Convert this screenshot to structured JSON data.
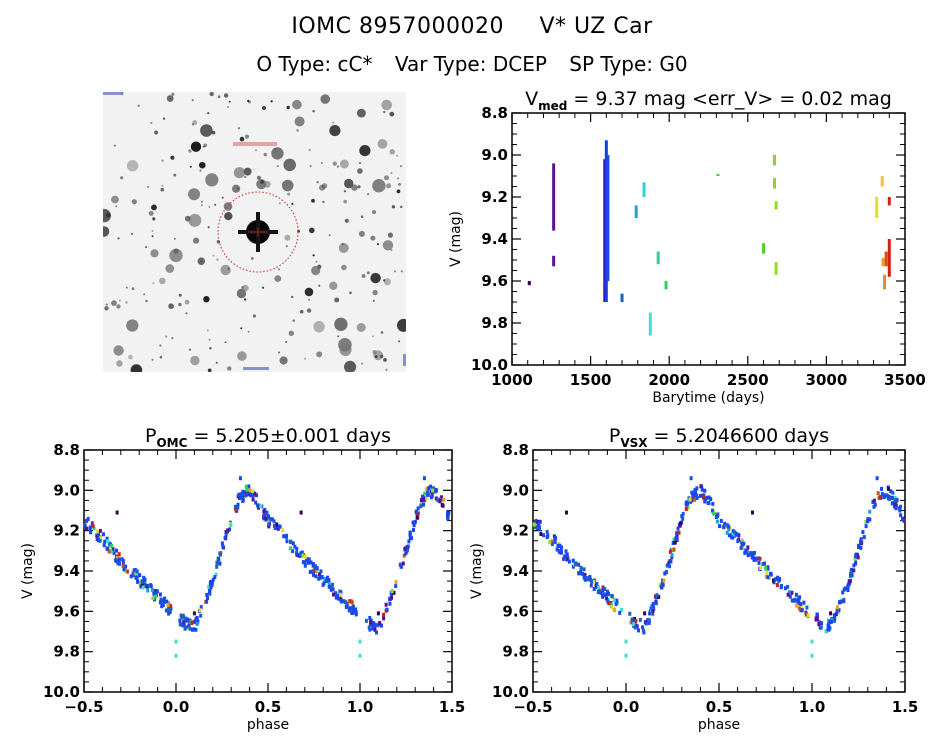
{
  "header": {
    "catalog_id": "IOMC 8957000020",
    "star_name": "V* UZ Car",
    "object_type": "O Type: cC*",
    "var_type": "Var Type: DCEP",
    "sp_type": "SP Type: G0"
  },
  "sky_image": {
    "description": "DSS-style grayscale star field centered on target with red circle marker"
  },
  "chart_data": [
    {
      "id": "lightcurve",
      "type": "scatter",
      "title_main": "V",
      "title_sub": "med",
      "title_rest": " = 9.37 mag <err_V> = 0.02 mag",
      "xlabel": "Barytime (days)",
      "ylabel": "V (mag)",
      "xlim": [
        1000,
        3500
      ],
      "ylim": [
        10.0,
        8.8
      ],
      "y_inverted": true,
      "xticks": [
        1000,
        1500,
        2000,
        2500,
        3000,
        3500
      ],
      "xtick_labels": [
        "1000",
        "1500",
        "2000",
        "2500",
        "3000",
        "3500"
      ],
      "yticks": [
        8.8,
        9.0,
        9.2,
        9.4,
        9.6,
        9.8,
        10.0
      ],
      "ytick_labels": [
        "8.8",
        "9.0",
        "9.2",
        "9.4",
        "9.6",
        "9.8",
        "10.0"
      ],
      "grid": false,
      "segments": [
        {
          "t": 1110,
          "v_min": 9.6,
          "v_max": 9.62,
          "color": "#3a0050"
        },
        {
          "t": 1265,
          "v_min": 9.04,
          "v_max": 9.36,
          "color": "#5a1090"
        },
        {
          "t": 1265,
          "v_min": 9.48,
          "v_max": 9.53,
          "color": "#5a1090"
        },
        {
          "t": 1590,
          "v_min": 9.02,
          "v_max": 9.7,
          "color": "#4a10c0"
        },
        {
          "t": 1600,
          "v_min": 8.93,
          "v_max": 9.7,
          "color": "#1040e0"
        },
        {
          "t": 1610,
          "v_min": 9.0,
          "v_max": 9.6,
          "color": "#1848f0"
        },
        {
          "t": 1700,
          "v_min": 9.66,
          "v_max": 9.7,
          "color": "#2060c0"
        },
        {
          "t": 1790,
          "v_min": 9.24,
          "v_max": 9.3,
          "color": "#20a0e0"
        },
        {
          "t": 1840,
          "v_min": 9.13,
          "v_max": 9.2,
          "color": "#30d0e0"
        },
        {
          "t": 1880,
          "v_min": 9.75,
          "v_max": 9.86,
          "color": "#40e0d0"
        },
        {
          "t": 1930,
          "v_min": 9.46,
          "v_max": 9.52,
          "color": "#30d090"
        },
        {
          "t": 1980,
          "v_min": 9.6,
          "v_max": 9.64,
          "color": "#30d060"
        },
        {
          "t": 2310,
          "v_min": 9.09,
          "v_max": 9.1,
          "color": "#40d040"
        },
        {
          "t": 2600,
          "v_min": 9.42,
          "v_max": 9.47,
          "color": "#50d030"
        },
        {
          "t": 2670,
          "v_min": 9.0,
          "v_max": 9.05,
          "color": "#90d030"
        },
        {
          "t": 2670,
          "v_min": 9.11,
          "v_max": 9.16,
          "color": "#90d030"
        },
        {
          "t": 2680,
          "v_min": 9.22,
          "v_max": 9.26,
          "color": "#90e020"
        },
        {
          "t": 2680,
          "v_min": 9.51,
          "v_max": 9.57,
          "color": "#90e020"
        },
        {
          "t": 3320,
          "v_min": 9.2,
          "v_max": 9.3,
          "color": "#e0e030"
        },
        {
          "t": 3355,
          "v_min": 9.1,
          "v_max": 9.15,
          "color": "#f0c040"
        },
        {
          "t": 3360,
          "v_min": 9.49,
          "v_max": 9.53,
          "color": "#f0a020"
        },
        {
          "t": 3370,
          "v_min": 9.57,
          "v_max": 9.64,
          "color": "#e09020"
        },
        {
          "t": 3380,
          "v_min": 9.46,
          "v_max": 9.53,
          "color": "#d05010"
        },
        {
          "t": 3400,
          "v_min": 9.4,
          "v_max": 9.58,
          "color": "#d02010"
        },
        {
          "t": 3400,
          "v_min": 9.2,
          "v_max": 9.24,
          "color": "#d02010"
        }
      ]
    },
    {
      "id": "phase_omc",
      "type": "scatter",
      "title_main": "P",
      "title_sub": "OMC",
      "title_rest": " = 5.205±0.001 days",
      "xlabel": "phase",
      "ylabel": "V (mag)",
      "xlim": [
        -0.5,
        1.5
      ],
      "ylim": [
        10.0,
        8.8
      ],
      "y_inverted": true,
      "xticks": [
        -0.5,
        0.0,
        0.5,
        1.0,
        1.5
      ],
      "xtick_labels": [
        "−0.5",
        "0.0",
        "0.5",
        "1.0",
        "1.5"
      ],
      "yticks": [
        8.8,
        9.0,
        9.2,
        9.4,
        9.6,
        9.8,
        10.0
      ],
      "ytick_labels": [
        "8.8",
        "9.0",
        "9.2",
        "9.4",
        "9.6",
        "9.8",
        "10.0"
      ],
      "grid": false,
      "light_curve_template": {
        "phase": [
          0.0,
          0.05,
          0.1,
          0.13,
          0.2,
          0.25,
          0.3,
          0.35,
          0.4,
          0.45,
          0.5,
          0.6,
          0.7,
          0.8,
          0.9,
          1.0
        ],
        "v": [
          9.62,
          9.66,
          9.68,
          9.62,
          9.45,
          9.3,
          9.15,
          9.03,
          9.0,
          9.06,
          9.15,
          9.24,
          9.35,
          9.44,
          9.53,
          9.62
        ]
      },
      "outliers": [
        {
          "phase": -0.32,
          "v": 9.11,
          "color": "#3a0050"
        },
        {
          "phase": 0.0,
          "v": 9.82,
          "color": "#40e0d0"
        },
        {
          "phase": 0.0,
          "v": 9.75,
          "color": "#40e0d0"
        },
        {
          "phase": 0.05,
          "v": 9.68,
          "color": "#2060c0"
        },
        {
          "phase": 0.1,
          "v": 9.61,
          "color": "#3a0050"
        },
        {
          "phase": 0.35,
          "v": 8.94,
          "color": "#1848f0"
        },
        {
          "phase": 0.68,
          "v": 9.11,
          "color": "#3a0050"
        },
        {
          "phase": 1.0,
          "v": 9.82,
          "color": "#40e0d0"
        },
        {
          "phase": 1.0,
          "v": 9.75,
          "color": "#40e0d0"
        },
        {
          "phase": 1.05,
          "v": 9.68,
          "color": "#2060c0"
        },
        {
          "phase": 1.1,
          "v": 9.61,
          "color": "#3a0050"
        },
        {
          "phase": 1.35,
          "v": 8.94,
          "color": "#1848f0"
        }
      ]
    },
    {
      "id": "phase_vsx",
      "type": "scatter",
      "title_main": "P",
      "title_sub": "VSX",
      "title_rest": " = 5.2046600 days",
      "xlabel": "phase",
      "ylabel": "V (mag)",
      "xlim": [
        -0.5,
        1.5
      ],
      "ylim": [
        10.0,
        8.8
      ],
      "y_inverted": true,
      "xticks": [
        -0.5,
        0.0,
        0.5,
        1.0,
        1.5
      ],
      "xtick_labels": [
        "−0.5",
        "0.0",
        "0.5",
        "1.0",
        "1.5"
      ],
      "yticks": [
        8.8,
        9.0,
        9.2,
        9.4,
        9.6,
        9.8,
        10.0
      ],
      "ytick_labels": [
        "8.8",
        "9.0",
        "9.2",
        "9.4",
        "9.6",
        "9.8",
        "10.0"
      ],
      "grid": false,
      "light_curve_template": {
        "phase": [
          0.0,
          0.05,
          0.1,
          0.13,
          0.2,
          0.25,
          0.3,
          0.35,
          0.4,
          0.45,
          0.5,
          0.6,
          0.7,
          0.8,
          0.9,
          1.0
        ],
        "v": [
          9.62,
          9.66,
          9.68,
          9.62,
          9.45,
          9.3,
          9.15,
          9.03,
          9.0,
          9.06,
          9.15,
          9.24,
          9.35,
          9.44,
          9.53,
          9.62
        ]
      },
      "outliers": [
        {
          "phase": -0.32,
          "v": 9.11,
          "color": "#3a0050"
        },
        {
          "phase": 0.0,
          "v": 9.82,
          "color": "#40e0d0"
        },
        {
          "phase": 0.0,
          "v": 9.75,
          "color": "#40e0d0"
        },
        {
          "phase": 0.05,
          "v": 9.68,
          "color": "#2060c0"
        },
        {
          "phase": 0.1,
          "v": 9.61,
          "color": "#3a0050"
        },
        {
          "phase": 0.35,
          "v": 8.94,
          "color": "#1848f0"
        },
        {
          "phase": 0.68,
          "v": 9.11,
          "color": "#3a0050"
        },
        {
          "phase": 1.0,
          "v": 9.82,
          "color": "#40e0d0"
        },
        {
          "phase": 1.0,
          "v": 9.75,
          "color": "#40e0d0"
        },
        {
          "phase": 1.05,
          "v": 9.68,
          "color": "#2060c0"
        },
        {
          "phase": 1.1,
          "v": 9.61,
          "color": "#3a0050"
        },
        {
          "phase": 1.35,
          "v": 8.94,
          "color": "#1848f0"
        }
      ]
    }
  ],
  "palette": [
    "#3a0050",
    "#5a1090",
    "#1848f0",
    "#2060c0",
    "#20a0e0",
    "#40e0d0",
    "#30d060",
    "#90e020",
    "#e0e030",
    "#f0a020",
    "#d05010",
    "#d02010"
  ]
}
